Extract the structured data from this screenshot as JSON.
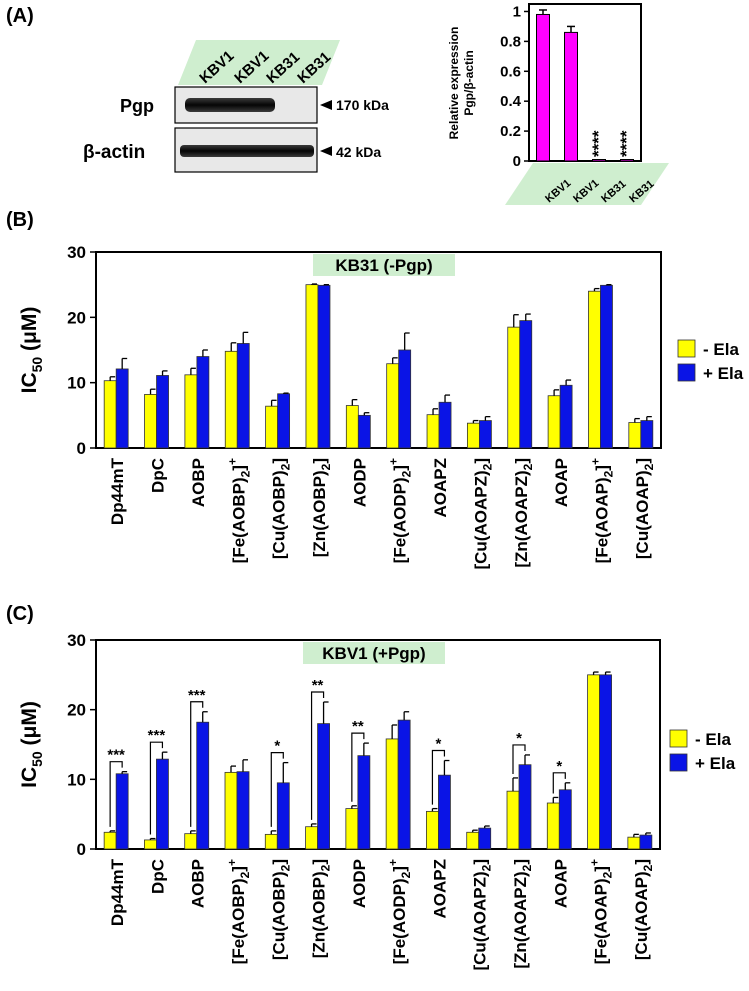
{
  "colors": {
    "minus_ela": "#ffff00",
    "plus_ela": "#0a14e6",
    "bar_a": "#ff00ff",
    "label_band": "#cfeecf",
    "blot_bg": "#e6e6e6",
    "band_dark": "#111111"
  },
  "panel_a": {
    "label": "(A)",
    "lanes": [
      "KBV1",
      "KBV1",
      "KB31",
      "KB31"
    ],
    "rows": [
      {
        "name": "Pgp",
        "marker": "170 kDa"
      },
      {
        "name": "β-actin",
        "marker": "42 kDa"
      }
    ]
  },
  "panel_b": {
    "label": "(B)"
  },
  "panel_c": {
    "label": "(C)"
  },
  "chart_data": [
    {
      "id": "A",
      "type": "bar",
      "ylabel": "Relative expression",
      "ylabel2": "Pgp/β-actin",
      "categories": [
        "KBV1",
        "KBV1",
        "KB31",
        "KB31"
      ],
      "values": [
        0.98,
        0.86,
        0.01,
        0.01
      ],
      "errors": [
        0.03,
        0.04,
        0.0,
        0.0
      ],
      "ylim": [
        0,
        1.05
      ],
      "yticks": [
        {
          "value": 0,
          "label": "0"
        },
        {
          "value": 0.2,
          "label": "0.2"
        },
        {
          "value": 0.4,
          "label": "0.4"
        },
        {
          "value": 0.6,
          "label": "0.6"
        },
        {
          "value": 0.8,
          "label": "0.8"
        },
        {
          "value": 1,
          "label": "1"
        }
      ],
      "annotations": [
        "",
        "",
        "****",
        "****"
      ]
    },
    {
      "id": "B",
      "type": "bar",
      "title": "KB31 (-Pgp)",
      "ylabel": "IC50 (μM)",
      "ylim": [
        0,
        30
      ],
      "yticks": [
        0,
        10,
        20,
        30
      ],
      "categories": [
        {
          "base": "Dp44mT"
        },
        {
          "base": "DpC"
        },
        {
          "base": "AOBP"
        },
        {
          "base": "[Fe(AOBP)",
          "sub": "2",
          "tail": "]",
          "sup": "+"
        },
        {
          "base": "[Cu(AOBP)",
          "sub": "2",
          "tail": "]"
        },
        {
          "base": "[Zn(AOBP)",
          "sub": "2",
          "tail": "]"
        },
        {
          "base": "AODP"
        },
        {
          "base": "[Fe(AODP)",
          "sub": "2",
          "tail": "]",
          "sup": "+"
        },
        {
          "base": "AOAPZ"
        },
        {
          "base": "[Cu(AOAPZ)",
          "sub": "2",
          "tail": "]"
        },
        {
          "base": "[Zn(AOAPZ)",
          "sub": "2",
          "tail": "]"
        },
        {
          "base": "AOAP"
        },
        {
          "base": "[Fe(AOAP)",
          "sub": "2",
          "tail": "]",
          "sup": "+"
        },
        {
          "base": "[Cu(AOAP)",
          "sub": "2",
          "tail": "]"
        }
      ],
      "series": [
        {
          "name": "- Ela",
          "values": [
            10.3,
            8.2,
            11.2,
            14.8,
            6.4,
            25.0,
            6.5,
            12.9,
            5.1,
            3.8,
            18.5,
            8.0,
            24.0,
            3.9
          ],
          "errors": [
            0.6,
            0.8,
            1.0,
            1.3,
            0.9,
            0.1,
            0.9,
            0.9,
            0.9,
            0.4,
            1.9,
            0.9,
            0.4,
            0.6
          ]
        },
        {
          "name": "+ Ela",
          "values": [
            12.1,
            11.1,
            14.0,
            16.0,
            8.3,
            24.9,
            5.0,
            15.0,
            7.0,
            4.2,
            19.5,
            9.6,
            24.9,
            4.2
          ],
          "errors": [
            1.6,
            0.7,
            1.0,
            1.7,
            0.1,
            0.1,
            0.4,
            2.6,
            1.1,
            0.6,
            1.0,
            0.8,
            0.1,
            0.6
          ]
        }
      ],
      "legend": {
        "minus": "- Ela",
        "plus": "+ Ela"
      },
      "annotations": []
    },
    {
      "id": "C",
      "type": "bar",
      "title": "KBV1 (+Pgp)",
      "ylabel": "IC50 (μM)",
      "ylim": [
        0,
        30
      ],
      "yticks": [
        0,
        10,
        20,
        30
      ],
      "categories": [
        {
          "base": "Dp44mT"
        },
        {
          "base": "DpC"
        },
        {
          "base": "AOBP"
        },
        {
          "base": "[Fe(AOBP)",
          "sub": "2",
          "tail": "]",
          "sup": "+"
        },
        {
          "base": "[Cu(AOBP)",
          "sub": "2",
          "tail": "]"
        },
        {
          "base": "[Zn(AOBP)",
          "sub": "2",
          "tail": "]"
        },
        {
          "base": "AODP"
        },
        {
          "base": "[Fe(AODP)",
          "sub": "2",
          "tail": "]",
          "sup": "+"
        },
        {
          "base": "AOAPZ"
        },
        {
          "base": "[Cu(AOAPZ)",
          "sub": "2",
          "tail": "]"
        },
        {
          "base": "[Zn(AOAPZ)",
          "sub": "2",
          "tail": "]"
        },
        {
          "base": "AOAP"
        },
        {
          "base": "[Fe(AOAP)",
          "sub": "2",
          "tail": "]",
          "sup": "+"
        },
        {
          "base": "[Cu(AOAP)",
          "sub": "2",
          "tail": "]"
        }
      ],
      "series": [
        {
          "name": "- Ela",
          "values": [
            2.4,
            1.3,
            2.2,
            11.0,
            2.1,
            3.2,
            5.8,
            15.8,
            5.4,
            2.4,
            8.3,
            6.6,
            25.0,
            1.7
          ],
          "errors": [
            0.2,
            0.2,
            0.4,
            0.9,
            0.5,
            0.4,
            0.4,
            2.0,
            0.4,
            0.3,
            1.9,
            0.8,
            0.4,
            0.4
          ]
        },
        {
          "name": "+ Ela",
          "values": [
            10.8,
            12.9,
            18.2,
            11.1,
            9.5,
            18.0,
            13.4,
            18.5,
            10.6,
            3.0,
            12.1,
            8.5,
            25.0,
            2.0
          ],
          "errors": [
            0.3,
            1.0,
            1.5,
            1.7,
            2.9,
            3.1,
            1.8,
            1.2,
            2.1,
            0.3,
            1.4,
            1.0,
            0.4,
            0.3
          ]
        }
      ],
      "legend": {
        "minus": "- Ela",
        "plus": "+ Ela"
      },
      "annotations": [
        {
          "index": 0,
          "label": "***"
        },
        {
          "index": 1,
          "label": "***"
        },
        {
          "index": 2,
          "label": "***"
        },
        {
          "index": 4,
          "label": "*"
        },
        {
          "index": 5,
          "label": "**"
        },
        {
          "index": 6,
          "label": "**"
        },
        {
          "index": 8,
          "label": "*"
        },
        {
          "index": 10,
          "label": "*"
        },
        {
          "index": 11,
          "label": "*"
        }
      ]
    }
  ]
}
